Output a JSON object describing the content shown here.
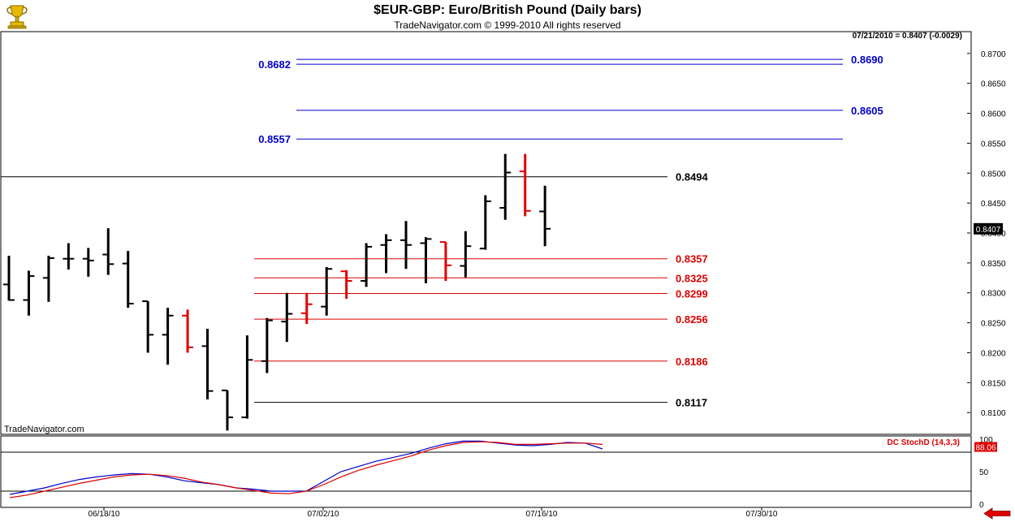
{
  "header": {
    "title": "$EUR-GBP:  Euro/British Pound  (Daily bars)",
    "subtitle": "TradeNavigator.com © 1999-2010 All rights reserved",
    "last_info": "07/21/2010 = 0.8407 (-0.0029)",
    "watermark": "TradeNavigator.com"
  },
  "colors": {
    "up_bar": "#000000",
    "down_bar": "#e00000",
    "fib_blue": "#0000cc",
    "fib_red": "#dd0000",
    "stoch_k": "#0000cc",
    "stoch_d": "#dd0000"
  },
  "chart_data": [
    {
      "type": "ohlc",
      "title": "$EUR-GBP:  Euro/British Pound  (Daily bars)",
      "ylim": [
        0.8065,
        0.8735
      ],
      "y_ticks": [
        "0.8700",
        "0.8650",
        "0.8600",
        "0.8550",
        "0.8500",
        "0.8450",
        "0.8400",
        "0.8350",
        "0.8300",
        "0.8250",
        "0.8200",
        "0.8150",
        "0.8100"
      ],
      "x_ticks": [
        "06/18/10",
        "07/02/10",
        "07/16/10",
        "07/30/10"
      ],
      "last_price_label": "0.8407",
      "bars": [
        {
          "o": 0.8314,
          "h": 0.8362,
          "l": 0.8287,
          "c": 0.8288,
          "dir": "up"
        },
        {
          "o": 0.8288,
          "h": 0.8337,
          "l": 0.8262,
          "c": 0.8328,
          "dir": "up"
        },
        {
          "o": 0.8325,
          "h": 0.8362,
          "l": 0.8285,
          "c": 0.8358,
          "dir": "up"
        },
        {
          "o": 0.8357,
          "h": 0.8383,
          "l": 0.8339,
          "c": 0.8357,
          "dir": "up"
        },
        {
          "o": 0.8357,
          "h": 0.8375,
          "l": 0.8327,
          "c": 0.8354,
          "dir": "up"
        },
        {
          "o": 0.8364,
          "h": 0.8408,
          "l": 0.833,
          "c": 0.8348,
          "dir": "up"
        },
        {
          "o": 0.8349,
          "h": 0.837,
          "l": 0.8275,
          "c": 0.8282,
          "dir": "up"
        },
        {
          "o": 0.8286,
          "h": 0.8286,
          "l": 0.82,
          "c": 0.823,
          "dir": "up"
        },
        {
          "o": 0.823,
          "h": 0.8275,
          "l": 0.818,
          "c": 0.8262,
          "dir": "up"
        },
        {
          "o": 0.8262,
          "h": 0.8272,
          "l": 0.82,
          "c": 0.8209,
          "dir": "down"
        },
        {
          "o": 0.8211,
          "h": 0.824,
          "l": 0.8122,
          "c": 0.8136,
          "dir": "up"
        },
        {
          "o": 0.8137,
          "h": 0.8137,
          "l": 0.807,
          "c": 0.8092,
          "dir": "up"
        },
        {
          "o": 0.8092,
          "h": 0.8229,
          "l": 0.809,
          "c": 0.8188,
          "dir": "up"
        },
        {
          "o": 0.8186,
          "h": 0.8258,
          "l": 0.8166,
          "c": 0.8254,
          "dir": "up"
        },
        {
          "o": 0.8252,
          "h": 0.83,
          "l": 0.8218,
          "c": 0.8265,
          "dir": "up"
        },
        {
          "o": 0.8266,
          "h": 0.83,
          "l": 0.8248,
          "c": 0.8281,
          "dir": "down"
        },
        {
          "o": 0.8277,
          "h": 0.8343,
          "l": 0.8262,
          "c": 0.834,
          "dir": "up"
        },
        {
          "o": 0.8336,
          "h": 0.8338,
          "l": 0.829,
          "c": 0.832,
          "dir": "down"
        },
        {
          "o": 0.832,
          "h": 0.8383,
          "l": 0.831,
          "c": 0.8377,
          "dir": "up"
        },
        {
          "o": 0.838,
          "h": 0.8398,
          "l": 0.8333,
          "c": 0.8388,
          "dir": "up"
        },
        {
          "o": 0.8388,
          "h": 0.842,
          "l": 0.834,
          "c": 0.838,
          "dir": "up"
        },
        {
          "o": 0.8383,
          "h": 0.8393,
          "l": 0.8316,
          "c": 0.839,
          "dir": "up"
        },
        {
          "o": 0.8385,
          "h": 0.8385,
          "l": 0.832,
          "c": 0.8346,
          "dir": "down"
        },
        {
          "o": 0.8345,
          "h": 0.8403,
          "l": 0.8326,
          "c": 0.8378,
          "dir": "up"
        },
        {
          "o": 0.8374,
          "h": 0.8463,
          "l": 0.8372,
          "c": 0.8453,
          "dir": "up"
        },
        {
          "o": 0.8442,
          "h": 0.8532,
          "l": 0.8422,
          "c": 0.8501,
          "dir": "up"
        },
        {
          "o": 0.8503,
          "h": 0.8532,
          "l": 0.8428,
          "c": 0.8437,
          "dir": "down"
        },
        {
          "o": 0.8436,
          "h": 0.8479,
          "l": 0.8378,
          "c": 0.8407,
          "dir": "up"
        }
      ]
    },
    {
      "type": "levels",
      "levels": [
        {
          "value": 0.869,
          "label": "0.8690",
          "group": "blue"
        },
        {
          "value": 0.8682,
          "label": "0.8682",
          "group": "blue"
        },
        {
          "value": 0.8605,
          "label": "0.8605",
          "group": "blue"
        },
        {
          "value": 0.8557,
          "label": "0.8557",
          "group": "blue"
        },
        {
          "value": 0.8494,
          "label": "0.8494",
          "group": "black"
        },
        {
          "value": 0.8357,
          "label": "0.8357",
          "group": "red"
        },
        {
          "value": 0.8325,
          "label": "0.8325",
          "group": "red"
        },
        {
          "value": 0.8299,
          "label": "0.8299",
          "group": "red"
        },
        {
          "value": 0.8256,
          "label": "0.8256",
          "group": "red"
        },
        {
          "value": 0.8186,
          "label": "0.8186",
          "group": "red"
        },
        {
          "value": 0.8117,
          "label": "0.8117",
          "group": "black"
        }
      ]
    },
    {
      "type": "line",
      "title": "DC StochD (14,3,3)",
      "ylim": [
        0,
        100
      ],
      "y_ticks": [
        "100",
        "50",
        "0"
      ],
      "reference_lines": [
        80,
        20
      ],
      "last_value_label": "88.06",
      "series": [
        {
          "values": [
            15,
            20,
            25,
            32,
            38,
            42,
            45,
            47,
            46,
            42,
            36,
            33,
            30,
            25,
            23,
            20,
            20,
            20,
            35,
            50,
            58,
            66,
            72,
            78,
            86,
            93,
            97,
            97,
            94,
            91,
            90,
            92,
            95,
            94,
            85
          ]
        },
        {
          "values": [
            10,
            14,
            20,
            26,
            32,
            37,
            42,
            45,
            46,
            44,
            40,
            34,
            30,
            25,
            21,
            17,
            16,
            20,
            30,
            42,
            52,
            60,
            67,
            74,
            83,
            90,
            95,
            96,
            95,
            92,
            92,
            93,
            94,
            94,
            92
          ]
        }
      ]
    }
  ]
}
